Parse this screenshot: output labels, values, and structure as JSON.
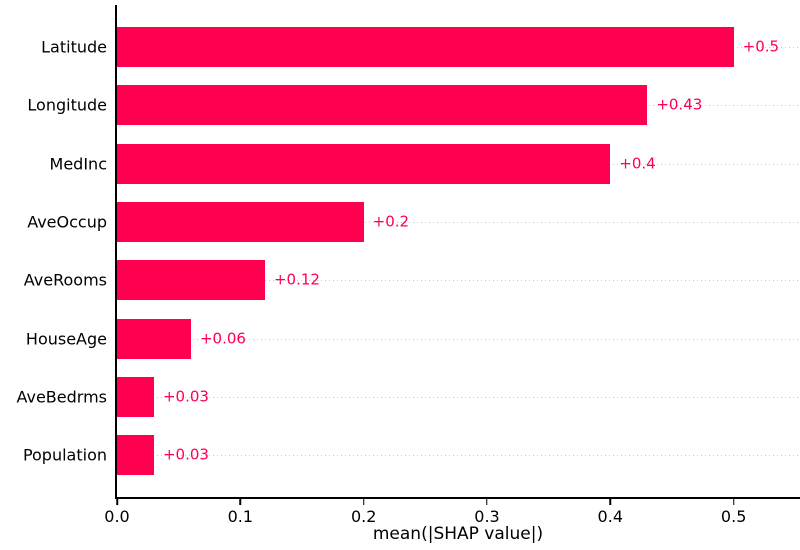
{
  "chart_data": {
    "type": "bar",
    "orientation": "horizontal",
    "title": "",
    "xlabel": "mean(|SHAP value|)",
    "ylabel": "",
    "categories": [
      "Latitude",
      "Longitude",
      "MedInc",
      "AveOccup",
      "AveRooms",
      "HouseAge",
      "AveBedrms",
      "Population"
    ],
    "values": [
      0.5,
      0.43,
      0.4,
      0.2,
      0.12,
      0.06,
      0.03,
      0.03
    ],
    "value_labels": [
      "+0.5",
      "+0.43",
      "+0.4",
      "+0.2",
      "+0.12",
      "+0.06",
      "+0.03",
      "+0.03"
    ],
    "x_ticks": [
      {
        "value": 0.0,
        "label": "0.0"
      },
      {
        "value": 0.1,
        "label": "0.1"
      },
      {
        "value": 0.2,
        "label": "0.2"
      },
      {
        "value": 0.3,
        "label": "0.3"
      },
      {
        "value": 0.4,
        "label": "0.4"
      },
      {
        "value": 0.5,
        "label": "0.5"
      }
    ],
    "xlim": [
      0,
      0.553
    ],
    "grid": "horizontal-dotted",
    "legend": "none",
    "colors": {
      "bar": "#ff0051",
      "value_label": "#ff0051",
      "gridline": "#c8c8c8",
      "spine": "#000000",
      "tick_label": "#000000",
      "background": "#ffffff"
    }
  }
}
